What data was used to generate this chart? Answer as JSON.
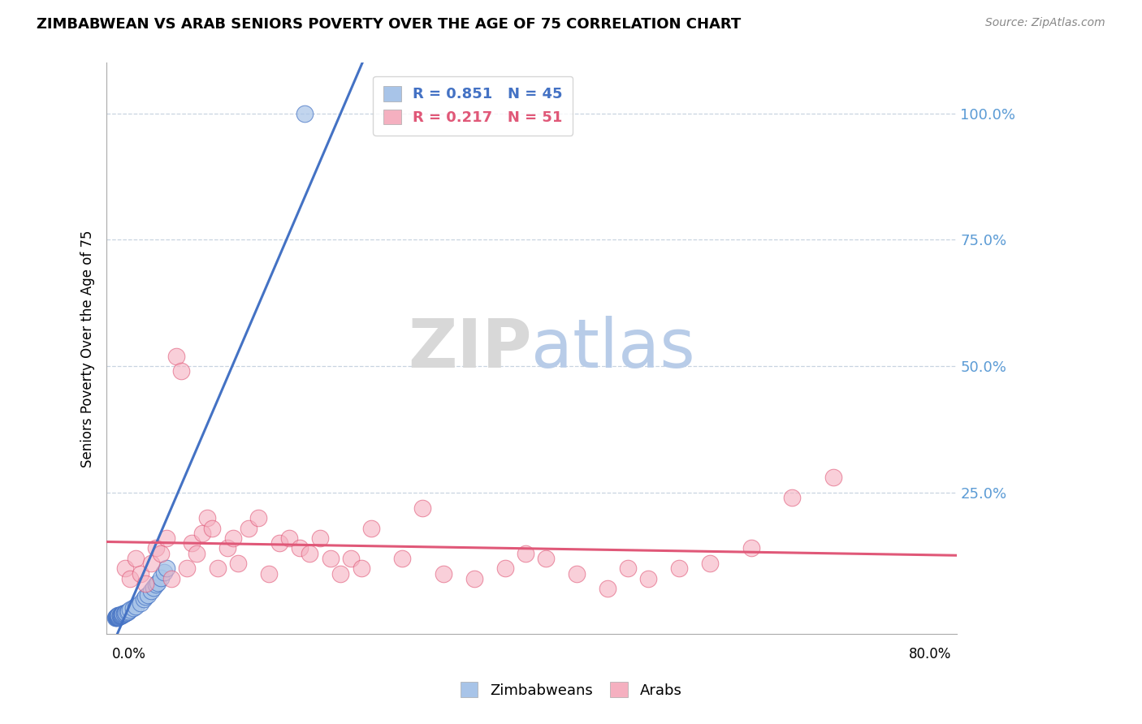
{
  "title": "ZIMBABWEAN VS ARAB SENIORS POVERTY OVER THE AGE OF 75 CORRELATION CHART",
  "source": "Source: ZipAtlas.com",
  "ylabel": "Seniors Poverty Over the Age of 75",
  "xlim": [
    -0.008,
    0.82
  ],
  "ylim": [
    -0.03,
    1.1
  ],
  "right_ytick_values": [
    0.25,
    0.5,
    0.75,
    1.0
  ],
  "right_ytick_labels": [
    "25.0%",
    "50.0%",
    "75.0%",
    "100.0%"
  ],
  "zimbabwean_R": 0.851,
  "zimbabwean_N": 45,
  "arab_R": 0.217,
  "arab_N": 51,
  "zimbabwean_scatter_color": "#a8c4e8",
  "arab_scatter_color": "#f5b0c0",
  "zimbabwean_line_color": "#4472c4",
  "arab_line_color": "#e05878",
  "watermark_zip_color": "#d8d8d8",
  "watermark_atlas_color": "#b8cce8",
  "tick_label_color": "#5b9bd5",
  "tick_label_fontsize": 13,
  "x_zim": [
    0.0005,
    0.001,
    0.001,
    0.001,
    0.002,
    0.002,
    0.002,
    0.002,
    0.003,
    0.003,
    0.003,
    0.003,
    0.004,
    0.004,
    0.004,
    0.005,
    0.005,
    0.005,
    0.006,
    0.006,
    0.007,
    0.007,
    0.008,
    0.008,
    0.009,
    0.009,
    0.01,
    0.011,
    0.012,
    0.013,
    0.015,
    0.018,
    0.02,
    0.025,
    0.028,
    0.03,
    0.032,
    0.035,
    0.038,
    0.04,
    0.042,
    0.045,
    0.048,
    0.05,
    0.185
  ],
  "y_zim": [
    0.002,
    0.003,
    0.004,
    0.005,
    0.003,
    0.004,
    0.005,
    0.006,
    0.004,
    0.005,
    0.006,
    0.007,
    0.005,
    0.006,
    0.007,
    0.006,
    0.007,
    0.008,
    0.007,
    0.008,
    0.008,
    0.009,
    0.009,
    0.01,
    0.01,
    0.011,
    0.012,
    0.013,
    0.014,
    0.015,
    0.018,
    0.022,
    0.025,
    0.032,
    0.04,
    0.045,
    0.048,
    0.055,
    0.062,
    0.068,
    0.072,
    0.082,
    0.092,
    0.1,
    1.0
  ],
  "x_arab": [
    0.01,
    0.015,
    0.02,
    0.025,
    0.03,
    0.035,
    0.04,
    0.045,
    0.05,
    0.055,
    0.06,
    0.065,
    0.07,
    0.075,
    0.08,
    0.085,
    0.09,
    0.095,
    0.1,
    0.11,
    0.115,
    0.12,
    0.13,
    0.14,
    0.15,
    0.16,
    0.17,
    0.18,
    0.19,
    0.2,
    0.21,
    0.22,
    0.23,
    0.24,
    0.25,
    0.28,
    0.3,
    0.32,
    0.35,
    0.38,
    0.4,
    0.42,
    0.45,
    0.48,
    0.5,
    0.52,
    0.55,
    0.58,
    0.62,
    0.66,
    0.7
  ],
  "y_arab": [
    0.1,
    0.08,
    0.12,
    0.09,
    0.07,
    0.11,
    0.14,
    0.13,
    0.16,
    0.08,
    0.52,
    0.49,
    0.1,
    0.15,
    0.13,
    0.17,
    0.2,
    0.18,
    0.1,
    0.14,
    0.16,
    0.11,
    0.18,
    0.2,
    0.09,
    0.15,
    0.16,
    0.14,
    0.13,
    0.16,
    0.12,
    0.09,
    0.12,
    0.1,
    0.18,
    0.12,
    0.22,
    0.09,
    0.08,
    0.1,
    0.13,
    0.12,
    0.09,
    0.06,
    0.1,
    0.08,
    0.1,
    0.11,
    0.14,
    0.24,
    0.28
  ]
}
